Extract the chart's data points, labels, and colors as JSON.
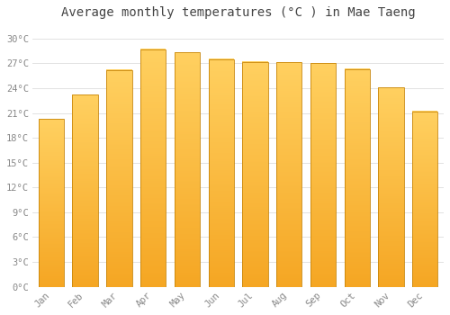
{
  "months": [
    "Jan",
    "Feb",
    "Mar",
    "Apr",
    "May",
    "Jun",
    "Jul",
    "Aug",
    "Sep",
    "Oct",
    "Nov",
    "Dec"
  ],
  "temperatures": [
    20.3,
    23.2,
    26.2,
    28.7,
    28.3,
    27.5,
    27.2,
    27.1,
    27.0,
    26.3,
    24.1,
    21.2
  ],
  "bar_color_bottom": "#F5A623",
  "bar_color_top": "#FFD060",
  "bar_edge_color": "#C8860A",
  "title": "Average monthly temperatures (°C ) in Mae Taeng",
  "title_fontsize": 10,
  "ylabel_ticks": [
    0,
    3,
    6,
    9,
    12,
    15,
    18,
    21,
    24,
    27,
    30
  ],
  "tick_labels": [
    "0°C",
    "3°C",
    "6°C",
    "9°C",
    "12°C",
    "15°C",
    "18°C",
    "21°C",
    "24°C",
    "27°C",
    "30°C"
  ],
  "ylim": [
    0,
    31.5
  ],
  "background_color": "#ffffff",
  "grid_color": "#dddddd",
  "tick_font_color": "#888888",
  "title_color": "#444444",
  "tick_fontsize": 7.5,
  "bar_width": 0.75
}
